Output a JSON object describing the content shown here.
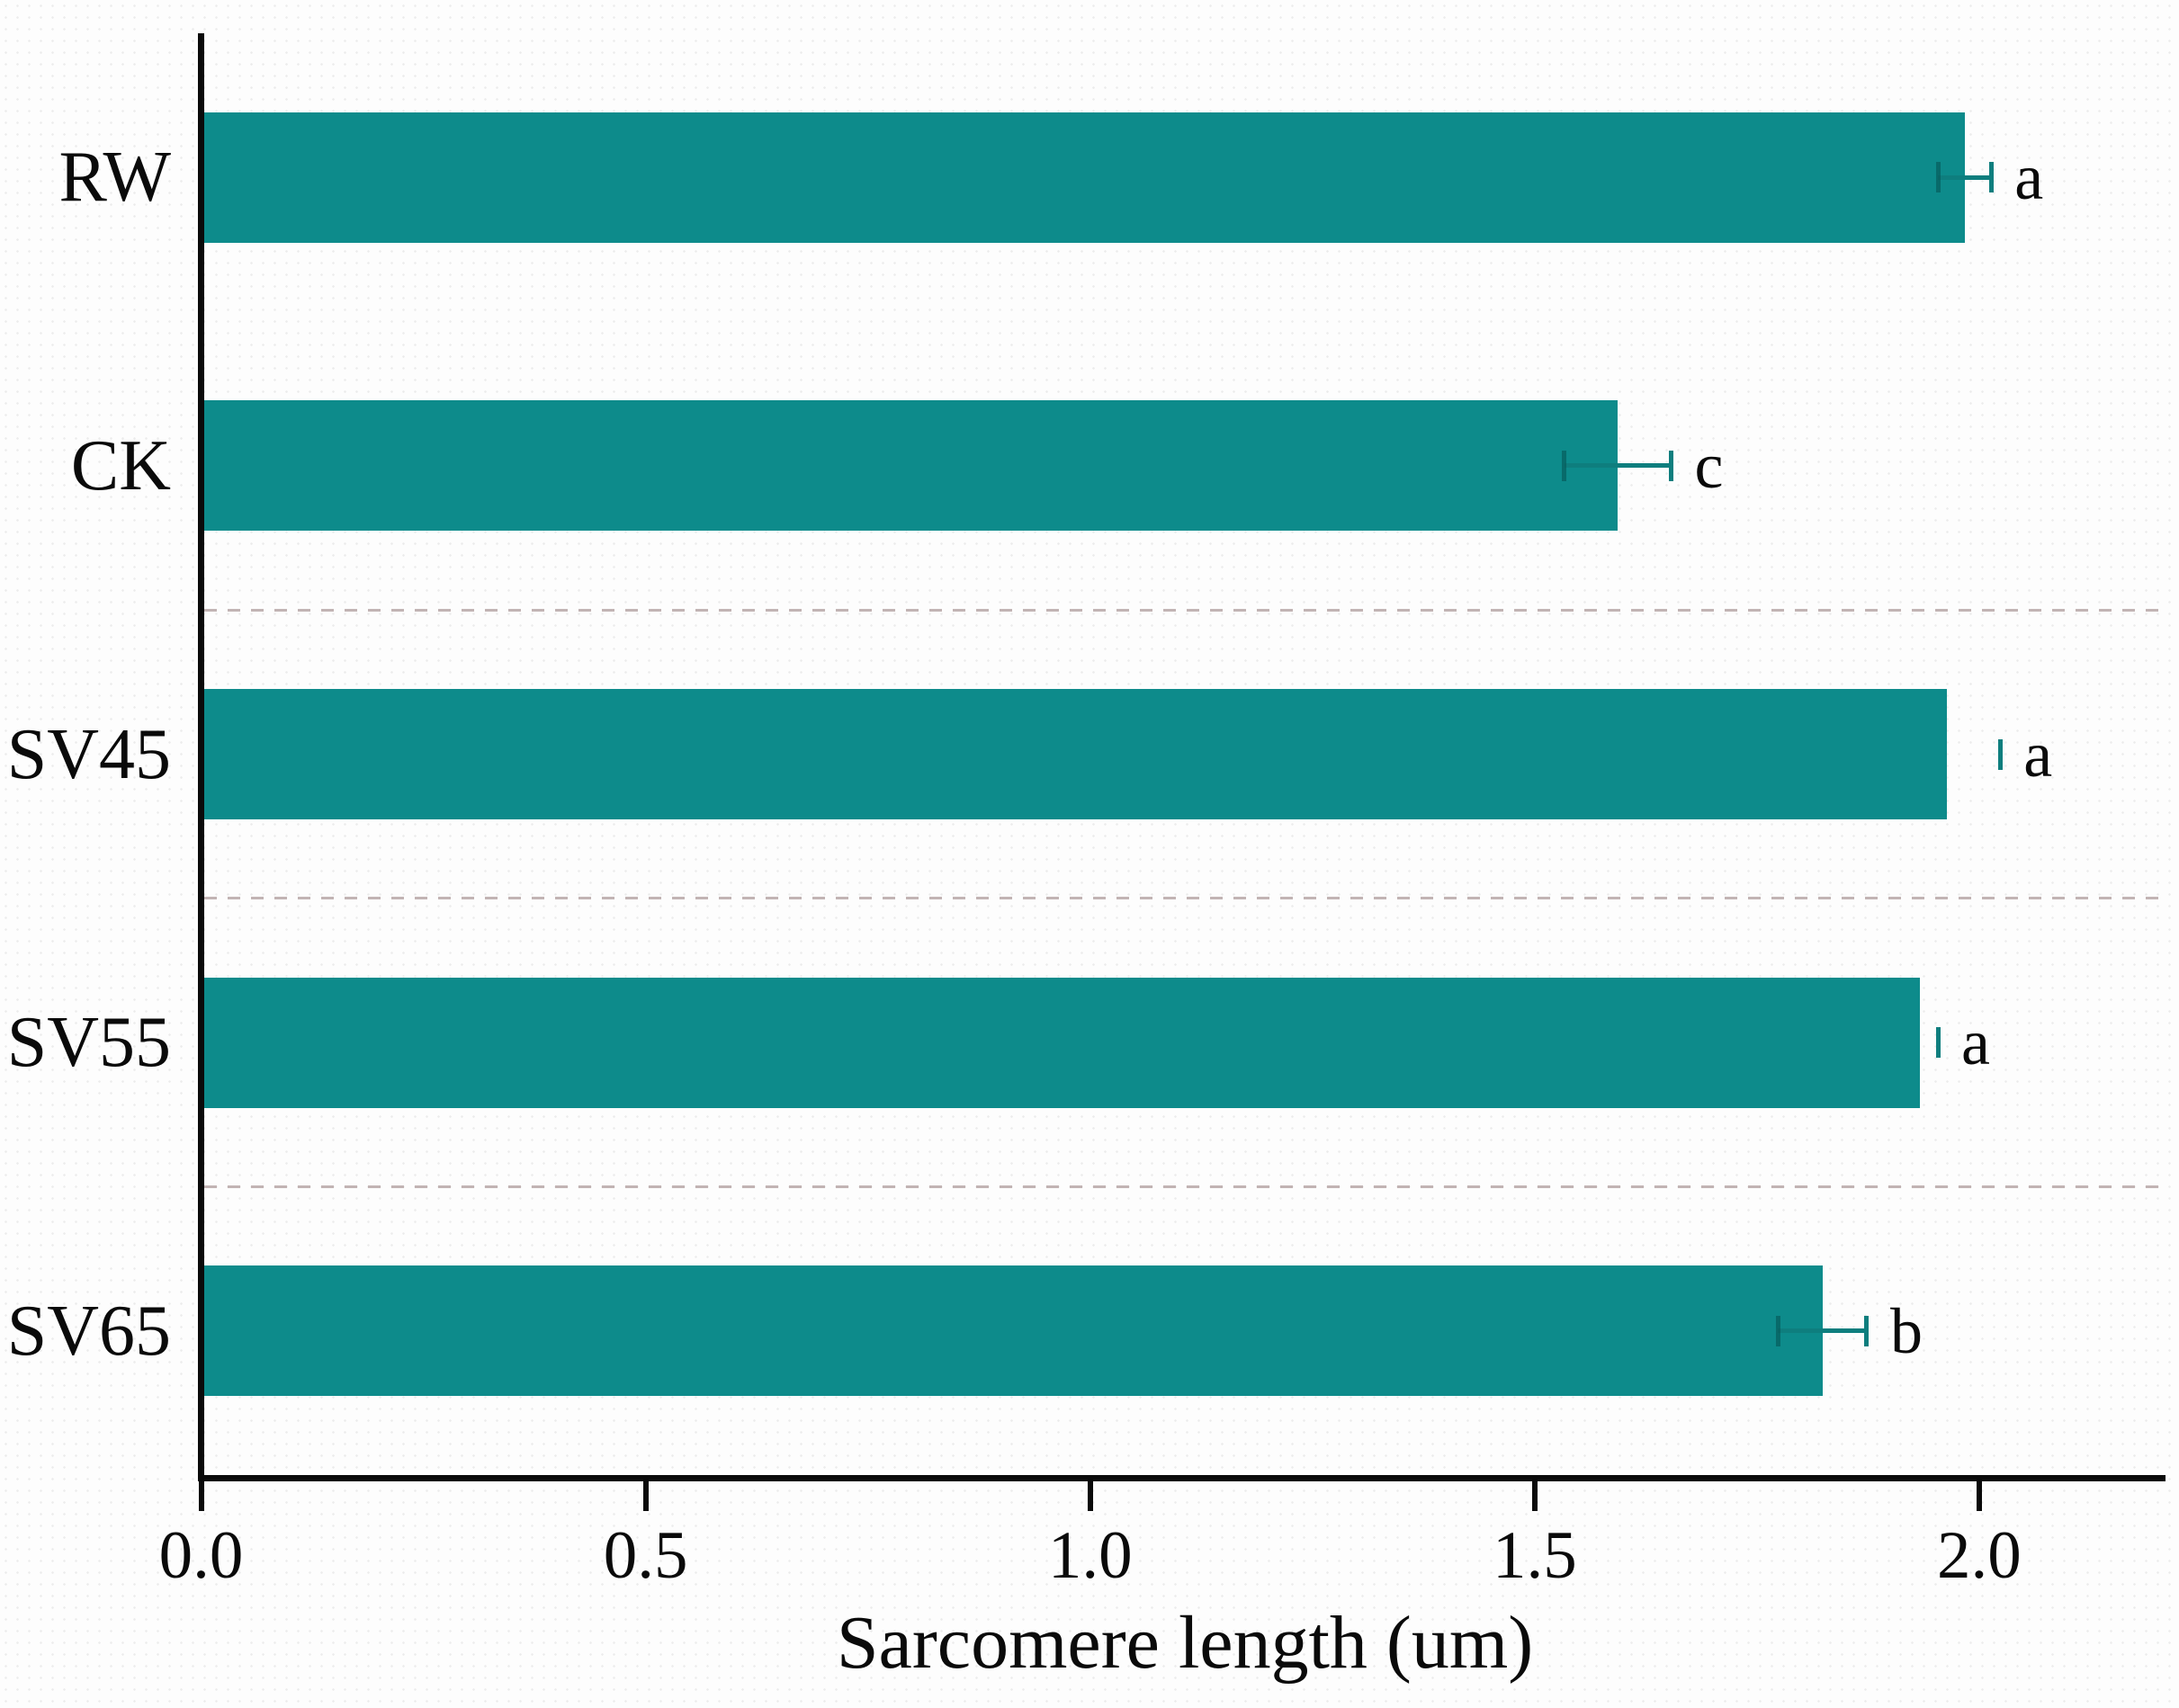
{
  "chart_data": {
    "type": "bar",
    "orientation": "horizontal",
    "xlabel": "Sarcomere length (um)",
    "categories": [
      "RW",
      "CK",
      "SV45",
      "SV55",
      "SV65"
    ],
    "values": [
      1.98,
      1.59,
      1.96,
      1.93,
      1.82
    ],
    "errors": [
      0.03,
      0.06,
      0.06,
      0.02,
      0.05
    ],
    "error_style": [
      "line-caps",
      "line-caps",
      "cap-only",
      "cap-only",
      "line-caps"
    ],
    "sig_letters": [
      "a",
      "c",
      "a",
      "a",
      "b"
    ],
    "xlim": [
      0,
      2.206
    ],
    "xticks": [
      0.0,
      0.5,
      1.0,
      1.5,
      2.0
    ],
    "xtick_labels": [
      "0.0",
      "0.5",
      "1.0",
      "1.5",
      "2.0"
    ],
    "grid": "dashed horizontal dividers between CK/SV45, SV45/SV55, SV55/SV65",
    "grid_divider_positions": [
      2,
      3,
      4
    ],
    "legend": "none",
    "colors": {
      "bar": "#0d8b8b",
      "error_bar": "#0e7e7e",
      "axis": "#0a0a0a",
      "text": "#0a0a0a",
      "gridline": "#c2b4b4",
      "background": "#fdfdfd"
    }
  }
}
